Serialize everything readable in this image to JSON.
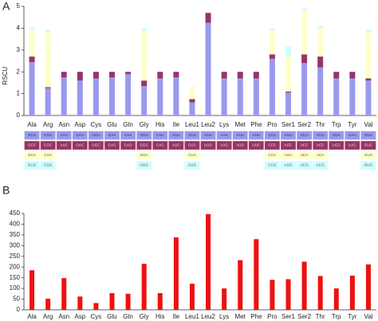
{
  "chart_data": [
    {
      "type": "stacked_bar",
      "panel": "A",
      "y_label": "RSCU",
      "categories": [
        "Ala",
        "Arg",
        "Asn",
        "Asp",
        "Cys",
        "Glu",
        "Gln",
        "Gly",
        "His",
        "Ile",
        "Leu1",
        "Leu2",
        "Lys",
        "Met",
        "Phe",
        "Pro",
        "Ser1",
        "Ser2",
        "Thr",
        "Trp",
        "Tyr",
        "Val"
      ],
      "ylim": [
        0,
        5
      ],
      "yticks": [
        0,
        1,
        2,
        3,
        4,
        5
      ],
      "series": [
        {
          "color": "#9999ee",
          "text_color": "#1f2f6f",
          "values": [
            2.45,
            1.25,
            1.75,
            1.6,
            1.7,
            1.75,
            1.9,
            1.35,
            1.7,
            1.75,
            0.6,
            4.25,
            1.7,
            1.7,
            1.7,
            2.6,
            1.05,
            2.4,
            2.2,
            1.7,
            1.7,
            1.6
          ],
          "codons": [
            "GCU",
            "CGU",
            "AAU",
            "GAU",
            "UGU",
            "GAA",
            "CAA",
            "GGU",
            "CAU",
            "AUU",
            "CUU",
            "UUA",
            "AAA",
            "AUU",
            "UUU",
            "CCU",
            "AGU",
            "UCU",
            "ACU",
            "UGA",
            "UAU",
            "GUU"
          ]
        },
        {
          "color": "#993366",
          "text_color": "#f3d9e6",
          "values": [
            0.25,
            0.05,
            0.25,
            0.4,
            0.3,
            0.25,
            0.1,
            0.25,
            0.3,
            0.25,
            0.15,
            0.45,
            0.3,
            0.3,
            0.3,
            0.2,
            0.05,
            0.4,
            0.5,
            0.3,
            0.3,
            0.1
          ],
          "codons": [
            "GCC",
            "CGC",
            "AAC",
            "GAC",
            "UGC",
            "GAG",
            "CAG",
            "GGC",
            "CAC",
            "AUC",
            "CUC",
            "UUG",
            "AAG",
            "AUG",
            "UUC",
            "CCC",
            "AGC",
            "UCC",
            "ACC",
            "UGG",
            "UAC",
            "GUC"
          ]
        },
        {
          "color": "#ffffcc",
          "text_color": "#555533",
          "values": [
            1.25,
            2.5,
            null,
            null,
            null,
            null,
            null,
            2.25,
            null,
            null,
            0.5,
            null,
            null,
            null,
            null,
            1.1,
            1.65,
            2.0,
            1.3,
            null,
            null,
            2.1
          ],
          "codons": [
            "GCA",
            "CGA",
            null,
            null,
            null,
            null,
            null,
            "GGA",
            null,
            null,
            "CUA",
            null,
            null,
            null,
            null,
            "CCA",
            "AGA",
            "UCA",
            "ACA",
            null,
            null,
            "GUA"
          ]
        },
        {
          "color": "#ccffff",
          "text_color": "#335555",
          "values": [
            0.1,
            0.15,
            null,
            null,
            null,
            null,
            null,
            0.15,
            null,
            null,
            0.05,
            null,
            null,
            null,
            null,
            0.1,
            0.4,
            0.1,
            0.1,
            null,
            null,
            0.15
          ],
          "codons": [
            "GCG",
            "CGG",
            null,
            null,
            null,
            null,
            null,
            "GGG",
            null,
            null,
            "CUG",
            null,
            null,
            null,
            null,
            "CCG",
            "AGG",
            "UCG",
            "ACG",
            null,
            null,
            "GUG"
          ]
        }
      ]
    },
    {
      "type": "bar",
      "panel": "B",
      "categories": [
        "Ala",
        "Arg",
        "Asn",
        "Asp",
        "Cys",
        "Glu",
        "Gln",
        "Gly",
        "His",
        "Ile",
        "Leu1",
        "Leu2",
        "Lys",
        "Met",
        "Phe",
        "Pro",
        "Ser1",
        "Ser2",
        "Thr",
        "Trp",
        "Tyr",
        "Val"
      ],
      "values": [
        185,
        52,
        148,
        62,
        32,
        78,
        75,
        215,
        78,
        338,
        122,
        447,
        100,
        232,
        330,
        140,
        143,
        225,
        158,
        100,
        160,
        212
      ],
      "color": "#ee1111",
      "ylim": [
        0,
        450
      ],
      "yticks": [
        0,
        50,
        100,
        150,
        200,
        250,
        300,
        350,
        400,
        450
      ]
    }
  ]
}
